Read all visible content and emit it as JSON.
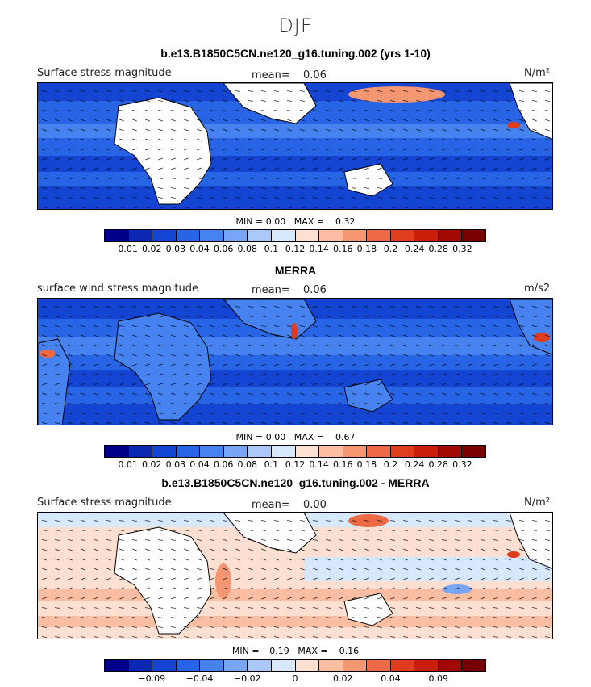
{
  "season": "DJF",
  "colors": [
    "#00008b",
    "#0a28b4",
    "#1445d2",
    "#2864e6",
    "#4682f0",
    "#78a5f5",
    "#aac8fa",
    "#d7e8fc",
    "#fde0d2",
    "#fbbea2",
    "#f59673",
    "#ee6a46",
    "#e03c1e",
    "#c81e0a",
    "#a00a00",
    "#780000"
  ],
  "panels": [
    {
      "title": "b.e13.B1850C5CN.ne120_g16.tuning.002 (yrs 1-10)",
      "left_label": "Surface stress magnitude",
      "mean_label": "mean=",
      "mean_value": "0.06",
      "unit": "N/m²",
      "min_label": "MIN =",
      "min_value": "0.00",
      "max_label": "MAX =",
      "max_value": "0.32",
      "ticks": [
        "0.01",
        "0.02",
        "0.03",
        "0.04",
        "0.06",
        "0.08",
        "0.1",
        "0.12",
        "0.14",
        "0.16",
        "0.18",
        "0.2",
        "0.24",
        "0.28",
        "0.32"
      ]
    },
    {
      "title": "MERRA",
      "left_label": "surface wind stress magnitude",
      "mean_label": "mean=",
      "mean_value": "0.06",
      "unit": "m/s2",
      "min_label": "MIN =",
      "min_value": "0.00",
      "max_label": "MAX =",
      "max_value": "0.67",
      "ticks": [
        "0.01",
        "0.02",
        "0.03",
        "0.04",
        "0.06",
        "0.08",
        "0.1",
        "0.12",
        "0.14",
        "0.16",
        "0.18",
        "0.2",
        "0.24",
        "0.28",
        "0.32"
      ]
    },
    {
      "title": "b.e13.B1850C5CN.ne120_g16.tuning.002 - MERRA",
      "left_label": "Surface stress magnitude",
      "mean_label": "mean=",
      "mean_value": "0.00",
      "unit": "N/m²",
      "min_label": "MIN =",
      "min_value": "−0.19",
      "max_label": "MAX =",
      "max_value": "0.16",
      "ticks": [
        "",
        "−0.09",
        "",
        "−0.04",
        "",
        "−0.02",
        "",
        "0",
        "",
        "0.02",
        "",
        "0.04",
        "",
        "0.09",
        ""
      ]
    }
  ],
  "chart_data": [
    {
      "type": "heatmap",
      "title": "b.e13.B1850C5CN.ne120_g16.tuning.002 (yrs 1-10)",
      "variable": "Surface stress magnitude",
      "unit": "N/m²",
      "mean": 0.06,
      "min": 0.0,
      "max": 0.32,
      "contour_levels": [
        0.01,
        0.02,
        0.03,
        0.04,
        0.06,
        0.08,
        0.1,
        0.12,
        0.14,
        0.16,
        0.18,
        0.2,
        0.24,
        0.28,
        0.32
      ]
    },
    {
      "type": "heatmap",
      "title": "MERRA",
      "variable": "surface wind stress magnitude",
      "unit": "m/s2",
      "mean": 0.06,
      "min": 0.0,
      "max": 0.67,
      "contour_levels": [
        0.01,
        0.02,
        0.03,
        0.04,
        0.06,
        0.08,
        0.1,
        0.12,
        0.14,
        0.16,
        0.18,
        0.2,
        0.24,
        0.28,
        0.32
      ]
    },
    {
      "type": "heatmap",
      "title": "b.e13.B1850C5CN.ne120_g16.tuning.002 - MERRA",
      "variable": "Surface stress magnitude",
      "unit": "N/m²",
      "mean": 0.0,
      "min": -0.19,
      "max": 0.16,
      "contour_levels": [
        -0.09,
        -0.04,
        -0.02,
        0,
        0.02,
        0.04,
        0.09
      ]
    }
  ]
}
